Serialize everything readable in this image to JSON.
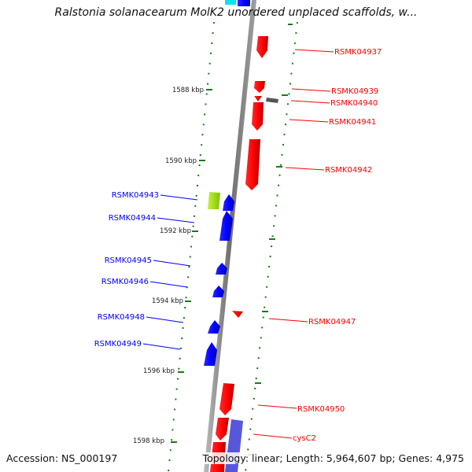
{
  "title": "Ralstonia solanacearum MolK2 unordered unplaced scaffolds, w...",
  "accession": "Accession: NS_000197",
  "topology": "Topology: linear; Length: 5,964,607 bp; Genes: 4,975",
  "colors": {
    "forward": "#ff0000",
    "reverse": "#0000ff",
    "other": "#666666",
    "tick": "#1a7a1a",
    "axis": "#808080"
  },
  "ruler": [
    {
      "label": "1588 kbp",
      "kbp": 1588
    },
    {
      "label": "1590 kbp",
      "kbp": 1590
    },
    {
      "label": "1592 kbp",
      "kbp": 1592
    },
    {
      "label": "1594 kbp",
      "kbp": 1594
    },
    {
      "label": "1596 kbp",
      "kbp": 1596
    },
    {
      "label": "1598 kbp",
      "kbp": 1598
    }
  ],
  "genes_right": [
    {
      "name": "RSMK04937"
    },
    {
      "name": "RSMK04939"
    },
    {
      "name": "RSMK04940"
    },
    {
      "name": "RSMK04941"
    },
    {
      "name": "RSMK04942"
    },
    {
      "name": "RSMK04947"
    },
    {
      "name": "RSMK04950"
    },
    {
      "name": "cysC2"
    }
  ],
  "genes_left": [
    {
      "name": "RSMK04943"
    },
    {
      "name": "RSMK04944"
    },
    {
      "name": "RSMK04945"
    },
    {
      "name": "RSMK04946"
    },
    {
      "name": "RSMK04948"
    },
    {
      "name": "RSMK04949"
    }
  ]
}
